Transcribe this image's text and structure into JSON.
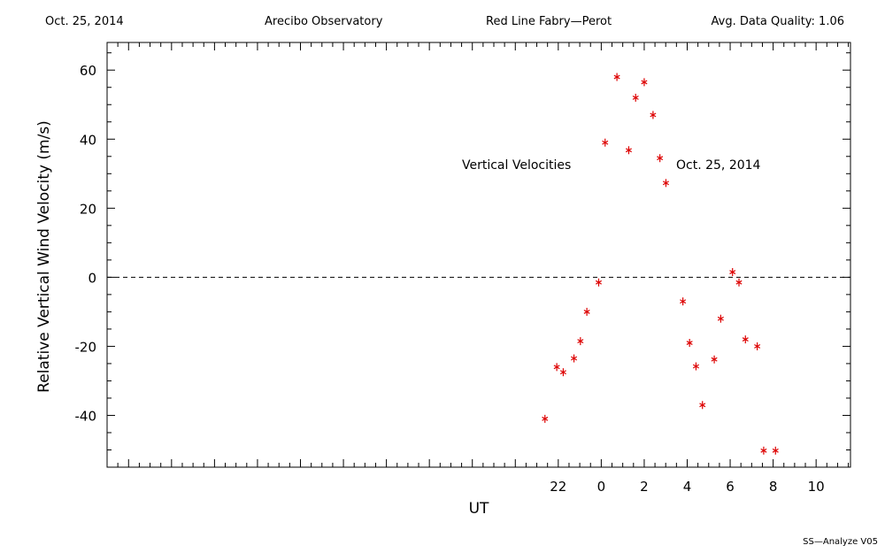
{
  "header": {
    "date": "Oct. 25, 2014",
    "observatory": "Arecibo Observatory",
    "instrument": "Red Line Fabry—Perot",
    "quality": "Avg. Data Quality: 1.06"
  },
  "footer": "SS—Analyze V05",
  "chart_data": {
    "type": "scatter",
    "xlabel": "UT",
    "ylabel": "Relative Vertical Wind Velocity (m/s)",
    "annotations": [
      "Vertical Velocities",
      "Oct. 25, 2014"
    ],
    "xlim": [
      -23.0,
      11.6
    ],
    "ylim": [
      -55,
      68
    ],
    "xticks": [
      22,
      0,
      2,
      4,
      6,
      8,
      10
    ],
    "yticks": [
      -40,
      -20,
      0,
      20,
      40,
      60
    ],
    "zero_line": true,
    "grid": false,
    "marker_color": "#dd0000",
    "series": [
      {
        "x": [
          "21.38",
          "21.93",
          "22.23",
          "22.73",
          "23.03",
          "23.33",
          "23.88",
          "24.18",
          "24.73",
          "25.28",
          "25.6",
          "26.0",
          "26.41",
          "26.73",
          "27.01",
          "27.8",
          "28.11",
          "28.41",
          "28.71",
          "29.26",
          "29.56",
          "30.11",
          "30.41",
          "30.71",
          "31.26",
          "31.56",
          "32.11"
        ],
        "y": [
          -41,
          -26,
          -27.5,
          -23.5,
          -18.5,
          -10,
          -1.5,
          39,
          58,
          36.8,
          52,
          56.5,
          47,
          34.5,
          27.3,
          -7,
          -19,
          -25.8,
          -37,
          -23.8,
          -12,
          1.5,
          -1.5,
          -18,
          -20,
          -50.2,
          -50.2
        ]
      }
    ]
  }
}
